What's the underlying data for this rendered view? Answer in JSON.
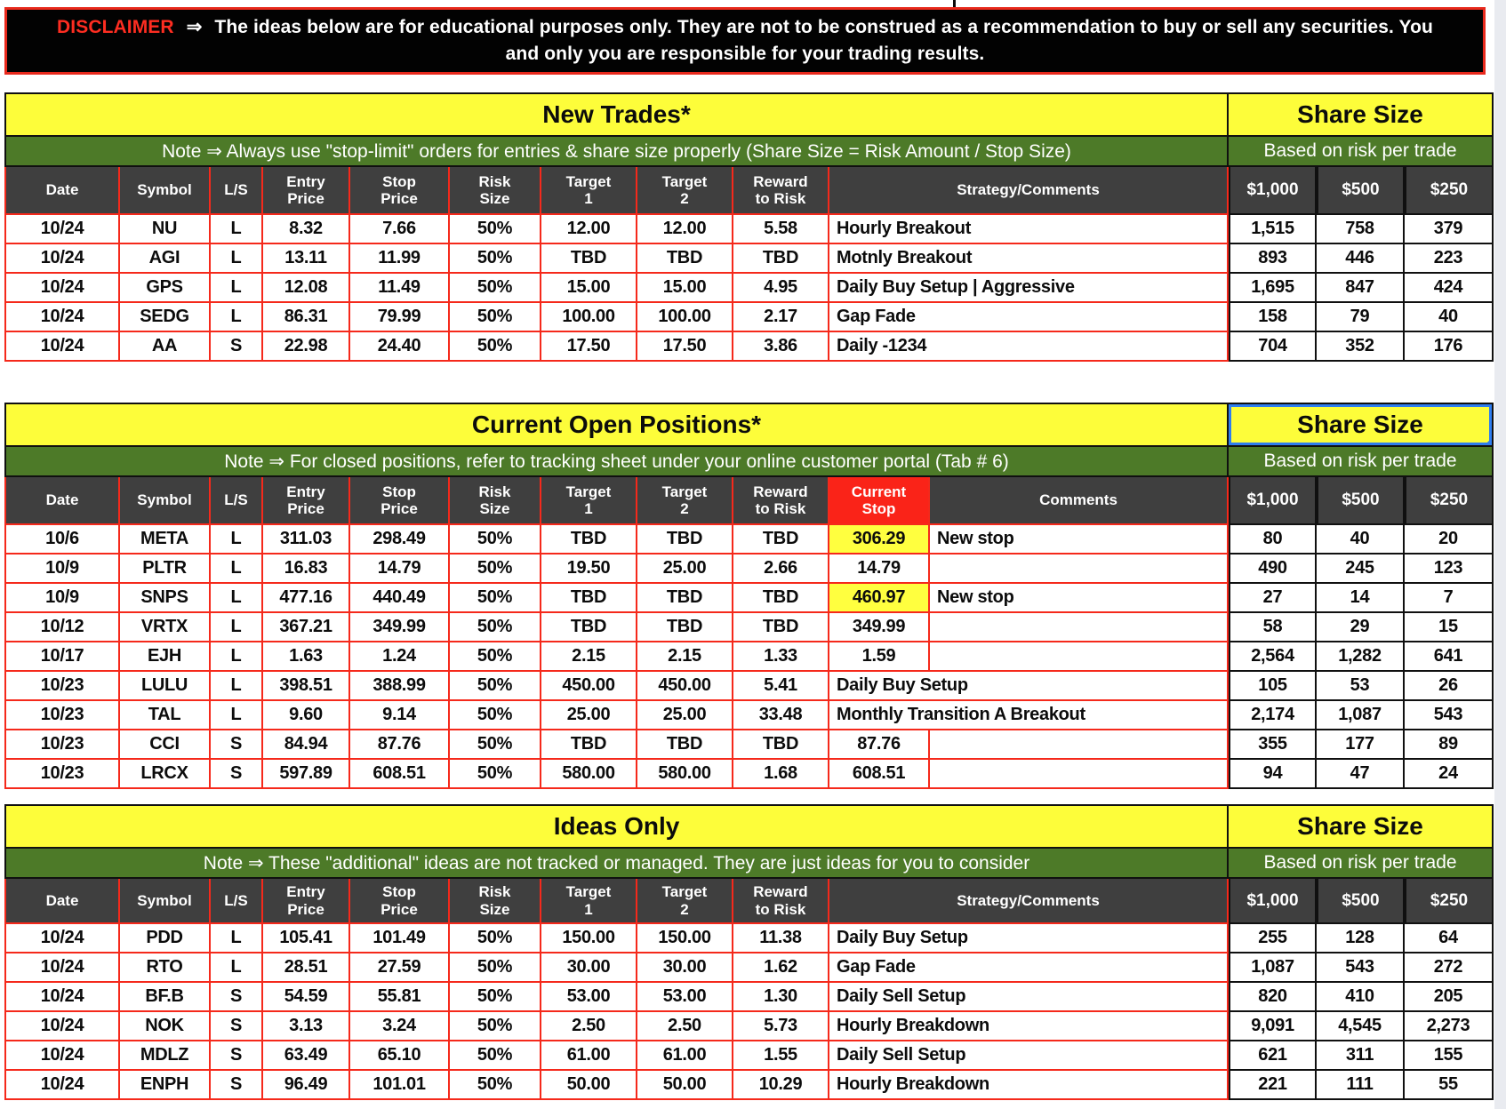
{
  "disclaimer": {
    "label": "DISCLAIMER",
    "arrow": "⇒",
    "text": "The ideas below are for educational purposes only. They are not to be construed as a recommendation to buy or sell any securities. You and only you are responsible for your trading results."
  },
  "share_size": {
    "title": "Share Size",
    "subtitle": "Based on risk per trade",
    "columns": [
      "$1,000",
      "$500",
      "$250"
    ]
  },
  "colors": {
    "band_yellow": "#fdfd3a",
    "band_green": "#4d7a28",
    "header_gray": "#3f3f3f",
    "grid_red": "#f5291b",
    "stop_header_red": "#fa2318",
    "highlight_yellow": "#ffff3f",
    "selection_blue": "#2e7df0"
  },
  "tables": [
    {
      "title": "New Trades*",
      "note": "Note ⇒ Always use \"stop-limit\" orders for entries & share size properly (Share Size = Risk Amount / Stop Size)",
      "headers": [
        "Date",
        "Symbol",
        "L/S",
        "Entry\nPrice",
        "Stop\nPrice",
        "Risk\nSize",
        "Target\n1",
        "Target\n2",
        "Reward\nto Risk",
        "Strategy/Comments"
      ],
      "rows": [
        {
          "date": "10/24",
          "symbol": "NU",
          "ls": "L",
          "entry": "8.32",
          "stop": "7.66",
          "risk": "50%",
          "t1": "12.00",
          "t2": "12.00",
          "rr": "5.58",
          "strategy": "Hourly Breakout",
          "s1": "1,515",
          "s2": "758",
          "s3": "379"
        },
        {
          "date": "10/24",
          "symbol": "AGI",
          "ls": "L",
          "entry": "13.11",
          "stop": "11.99",
          "risk": "50%",
          "t1": "TBD",
          "t2": "TBD",
          "rr": "TBD",
          "strategy": "Motnly Breakout",
          "s1": "893",
          "s2": "446",
          "s3": "223"
        },
        {
          "date": "10/24",
          "symbol": "GPS",
          "ls": "L",
          "entry": "12.08",
          "stop": "11.49",
          "risk": "50%",
          "t1": "15.00",
          "t2": "15.00",
          "rr": "4.95",
          "strategy": "Daily Buy Setup | Aggressive",
          "s1": "1,695",
          "s2": "847",
          "s3": "424"
        },
        {
          "date": "10/24",
          "symbol": "SEDG",
          "ls": "L",
          "entry": "86.31",
          "stop": "79.99",
          "risk": "50%",
          "t1": "100.00",
          "t2": "100.00",
          "rr": "2.17",
          "strategy": "Gap Fade",
          "s1": "158",
          "s2": "79",
          "s3": "40"
        },
        {
          "date": "10/24",
          "symbol": "AA",
          "ls": "S",
          "entry": "22.98",
          "stop": "24.40",
          "risk": "50%",
          "t1": "17.50",
          "t2": "17.50",
          "rr": "3.86",
          "strategy": "Daily -1234",
          "s1": "704",
          "s2": "352",
          "s3": "176"
        }
      ]
    },
    {
      "title": "Current Open Positions*",
      "note": "Note ⇒ For closed positions, refer to tracking sheet under your online customer portal (Tab # 6)",
      "headers": [
        "Date",
        "Symbol",
        "L/S",
        "Entry\nPrice",
        "Stop\nPrice",
        "Risk\nSize",
        "Target\n1",
        "Target\n2",
        "Reward\nto Risk",
        "Current\nStop",
        "Comments"
      ],
      "share_selected": true,
      "rows": [
        {
          "date": "10/6",
          "symbol": "META",
          "ls": "L",
          "entry": "311.03",
          "stop": "298.49",
          "risk": "50%",
          "t1": "TBD",
          "t2": "TBD",
          "rr": "TBD",
          "cstop": "306.29",
          "cstop_hl": true,
          "comment": "New stop",
          "s1": "80",
          "s2": "40",
          "s3": "20"
        },
        {
          "date": "10/9",
          "symbol": "PLTR",
          "ls": "L",
          "entry": "16.83",
          "stop": "14.79",
          "risk": "50%",
          "t1": "19.50",
          "t2": "25.00",
          "rr": "2.66",
          "cstop": "14.79",
          "cstop_hl": false,
          "comment": "",
          "s1": "490",
          "s2": "245",
          "s3": "123"
        },
        {
          "date": "10/9",
          "symbol": "SNPS",
          "ls": "L",
          "entry": "477.16",
          "stop": "440.49",
          "risk": "50%",
          "t1": "TBD",
          "t2": "TBD",
          "rr": "TBD",
          "cstop": "460.97",
          "cstop_hl": true,
          "comment": "New stop",
          "s1": "27",
          "s2": "14",
          "s3": "7"
        },
        {
          "date": "10/12",
          "symbol": "VRTX",
          "ls": "L",
          "entry": "367.21",
          "stop": "349.99",
          "risk": "50%",
          "t1": "TBD",
          "t2": "TBD",
          "rr": "TBD",
          "cstop": "349.99",
          "cstop_hl": false,
          "comment": "",
          "s1": "58",
          "s2": "29",
          "s3": "15"
        },
        {
          "date": "10/17",
          "symbol": "EJH",
          "ls": "L",
          "entry": "1.63",
          "stop": "1.24",
          "risk": "50%",
          "t1": "2.15",
          "t2": "2.15",
          "rr": "1.33",
          "cstop": "1.59",
          "cstop_hl": false,
          "comment": "",
          "s1": "2,564",
          "s2": "1,282",
          "s3": "641"
        },
        {
          "date": "10/23",
          "symbol": "LULU",
          "ls": "L",
          "entry": "398.51",
          "stop": "388.99",
          "risk": "50%",
          "t1": "450.00",
          "t2": "450.00",
          "rr": "5.41",
          "cstop": "",
          "cstop_hl": false,
          "comment": "Daily Buy Setup",
          "comment_span": true,
          "s1": "105",
          "s2": "53",
          "s3": "26"
        },
        {
          "date": "10/23",
          "symbol": "TAL",
          "ls": "L",
          "entry": "9.60",
          "stop": "9.14",
          "risk": "50%",
          "t1": "25.00",
          "t2": "25.00",
          "rr": "33.48",
          "cstop": "",
          "cstop_hl": false,
          "comment": "Monthly Transition A Breakout",
          "comment_span": true,
          "s1": "2,174",
          "s2": "1,087",
          "s3": "543"
        },
        {
          "date": "10/23",
          "symbol": "CCI",
          "ls": "S",
          "entry": "84.94",
          "stop": "87.76",
          "risk": "50%",
          "t1": "TBD",
          "t2": "TBD",
          "rr": "TBD",
          "cstop": "87.76",
          "cstop_hl": false,
          "comment": "",
          "s1": "355",
          "s2": "177",
          "s3": "89"
        },
        {
          "date": "10/23",
          "symbol": "LRCX",
          "ls": "S",
          "entry": "597.89",
          "stop": "608.51",
          "risk": "50%",
          "t1": "580.00",
          "t2": "580.00",
          "rr": "1.68",
          "cstop": "608.51",
          "cstop_hl": false,
          "comment": "",
          "s1": "94",
          "s2": "47",
          "s3": "24"
        }
      ]
    },
    {
      "title": "Ideas Only",
      "note": "Note ⇒ These \"additional\" ideas are not tracked or managed. They are just ideas for you to consider",
      "headers": [
        "Date",
        "Symbol",
        "L/S",
        "Entry\nPrice",
        "Stop\nPrice",
        "Risk\nSize",
        "Target\n1",
        "Target\n2",
        "Reward\nto Risk",
        "Strategy/Comments"
      ],
      "rows": [
        {
          "date": "10/24",
          "symbol": "PDD",
          "ls": "L",
          "entry": "105.41",
          "stop": "101.49",
          "risk": "50%",
          "t1": "150.00",
          "t2": "150.00",
          "rr": "11.38",
          "strategy": "Daily Buy Setup",
          "s1": "255",
          "s2": "128",
          "s3": "64"
        },
        {
          "date": "10/24",
          "symbol": "RTO",
          "ls": "L",
          "entry": "28.51",
          "stop": "27.59",
          "risk": "50%",
          "t1": "30.00",
          "t2": "30.00",
          "rr": "1.62",
          "strategy": "Gap Fade",
          "s1": "1,087",
          "s2": "543",
          "s3": "272"
        },
        {
          "date": "10/24",
          "symbol": "BF.B",
          "ls": "S",
          "entry": "54.59",
          "stop": "55.81",
          "risk": "50%",
          "t1": "53.00",
          "t2": "53.00",
          "rr": "1.30",
          "strategy": "Daily Sell Setup",
          "s1": "820",
          "s2": "410",
          "s3": "205"
        },
        {
          "date": "10/24",
          "symbol": "NOK",
          "ls": "S",
          "entry": "3.13",
          "stop": "3.24",
          "risk": "50%",
          "t1": "2.50",
          "t2": "2.50",
          "rr": "5.73",
          "strategy": "Hourly Breakdown",
          "s1": "9,091",
          "s2": "4,545",
          "s3": "2,273"
        },
        {
          "date": "10/24",
          "symbol": "MDLZ",
          "ls": "S",
          "entry": "63.49",
          "stop": "65.10",
          "risk": "50%",
          "t1": "61.00",
          "t2": "61.00",
          "rr": "1.55",
          "strategy": "Daily Sell Setup",
          "s1": "621",
          "s2": "311",
          "s3": "155"
        },
        {
          "date": "10/24",
          "symbol": "ENPH",
          "ls": "S",
          "entry": "96.49",
          "stop": "101.01",
          "risk": "50%",
          "t1": "50.00",
          "t2": "50.00",
          "rr": "10.29",
          "strategy": "Hourly Breakdown",
          "s1": "221",
          "s2": "111",
          "s3": "55"
        }
      ]
    }
  ]
}
